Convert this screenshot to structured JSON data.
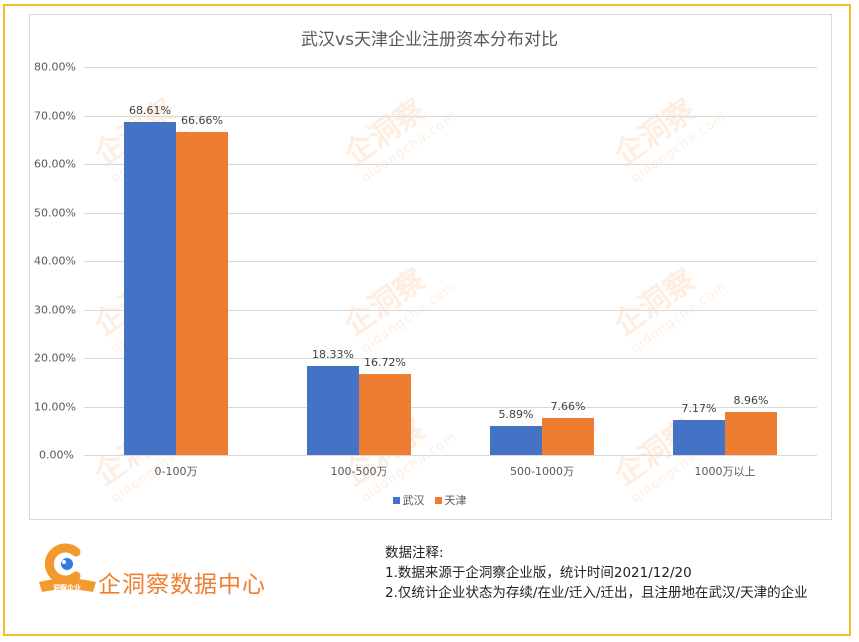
{
  "chart_data": {
    "type": "bar",
    "title": "武汉vs天津企业注册资本分布对比",
    "categories": [
      "0-100万",
      "100-500万",
      "500-1000万",
      "1000万以上"
    ],
    "series": [
      {
        "name": "武汉",
        "color": "#4472C4",
        "values": [
          68.61,
          18.33,
          5.89,
          7.17
        ],
        "labels": [
          "68.61%",
          "18.33%",
          "5.89%",
          "7.17%"
        ]
      },
      {
        "name": "天津",
        "color": "#ED7D31",
        "values": [
          66.66,
          16.72,
          7.66,
          8.96
        ],
        "labels": [
          "66.66%",
          "16.72%",
          "7.66%",
          "8.96%"
        ]
      }
    ],
    "xlabel": "",
    "ylabel": "",
    "ylim": [
      0,
      80
    ],
    "yticks": [
      "0.00%",
      "10.00%",
      "20.00%",
      "30.00%",
      "40.00%",
      "50.00%",
      "60.00%",
      "70.00%",
      "80.00%"
    ],
    "grid": true,
    "legend_position": "bottom"
  },
  "watermark": {
    "brand": "企洞察",
    "url": "qidongcha.com"
  },
  "footer": {
    "brand": "企洞察数据中心",
    "logo_badge": "洞察企业",
    "notes_title": "数据注释:",
    "notes": [
      "1.数据来源于企洞察企业版，统计时间2021/12/20",
      "2.仅统计企业状态为存续/在业/迁入/迁出，且注册地在武汉/天津的企业"
    ]
  },
  "colors": {
    "frame": "#F2C01E",
    "wuhan": "#4472C4",
    "tianjin": "#ED7D31",
    "brand": "#EF7F2E"
  }
}
